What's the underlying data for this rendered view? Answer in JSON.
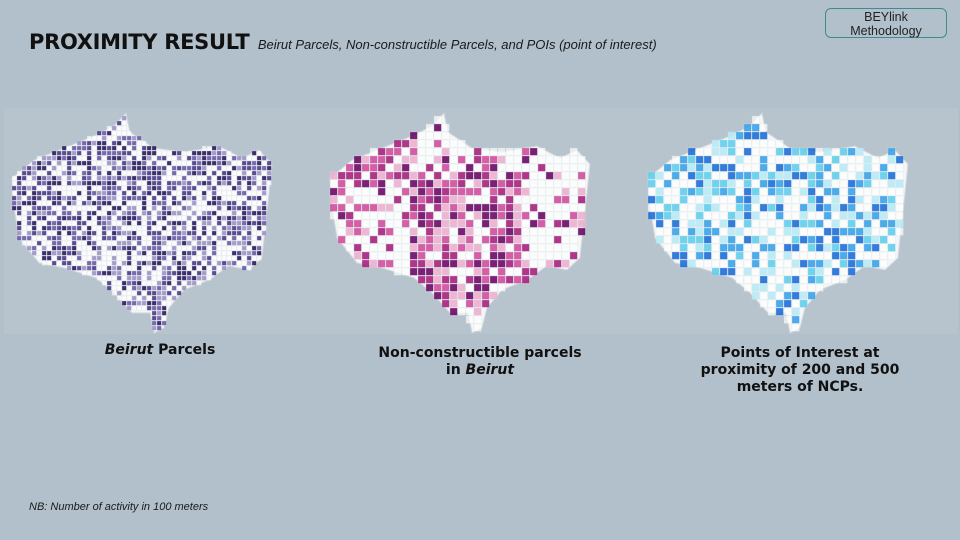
{
  "slide": {
    "title": "PROXIMITY RESULT",
    "subtitle": "Beirut Parcels, Non-constructible Parcels, and POIs (point of interest)",
    "badge_line1": "BEYlink",
    "badge_line2": "Methodology",
    "footnote": "NB: Number of activity in 100 meters"
  },
  "maps": [
    {
      "caption_italic": "Beirut",
      "caption_rest": " Parcels",
      "palette": [
        "#2a1a5e",
        "#4a3a86",
        "#6a5aa6",
        "#9c93c6"
      ]
    },
    {
      "caption_line1": "Non-constructible parcels",
      "caption_line2_prefix": "in ",
      "caption_italic": "Beirut",
      "palette": [
        "#6d0a67",
        "#a8237f",
        "#d14f9e",
        "#eeb0d0"
      ]
    },
    {
      "caption_line1": "Points of Interest at",
      "caption_line2": "proximity of 200 and 500",
      "caption_line3": "meters of NCPs.",
      "palette": [
        "#1e6fd9",
        "#3ba3ea",
        "#5fd0ee",
        "#b7ecf7"
      ]
    }
  ]
}
